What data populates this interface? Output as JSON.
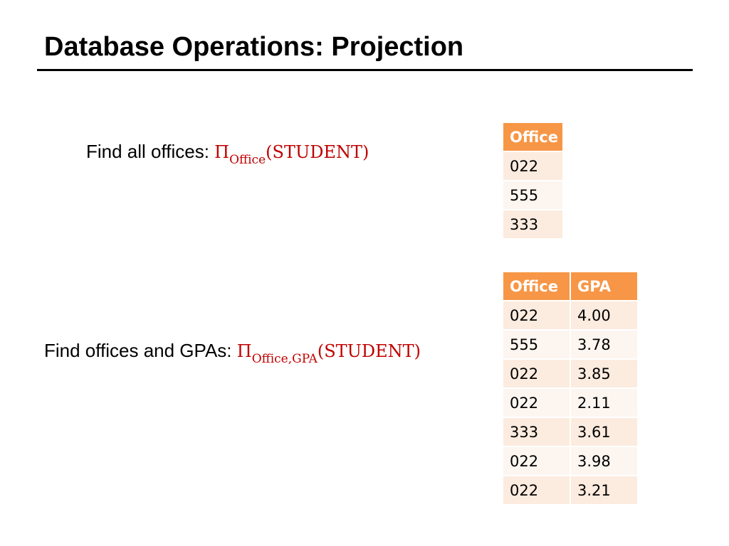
{
  "title": "Database Operations: Projection",
  "queries": [
    {
      "label": "Find all offices:",
      "operator": "Π",
      "subscript": "Office",
      "relation": "(STUDENT)"
    },
    {
      "label": "Find offices and GPAs:",
      "operator": "Π",
      "subscript": "Office,GPA",
      "relation": "(STUDENT)"
    }
  ],
  "tables": [
    {
      "columns": [
        "Office"
      ],
      "rows": [
        [
          "022"
        ],
        [
          "555"
        ],
        [
          "333"
        ]
      ]
    },
    {
      "columns": [
        "Office",
        "GPA"
      ],
      "rows": [
        [
          "022",
          "4.00"
        ],
        [
          "555",
          "3.78"
        ],
        [
          "022",
          "3.85"
        ],
        [
          "022",
          "2.11"
        ],
        [
          "333",
          "3.61"
        ],
        [
          "022",
          "3.98"
        ],
        [
          "022",
          "3.21"
        ]
      ]
    }
  ],
  "colors": {
    "header_fill": "#f79646",
    "header_text": "#ffffff",
    "row_odd": "#fcebdf",
    "row_even": "#fdf5f0",
    "expression_text": "#c00000"
  }
}
